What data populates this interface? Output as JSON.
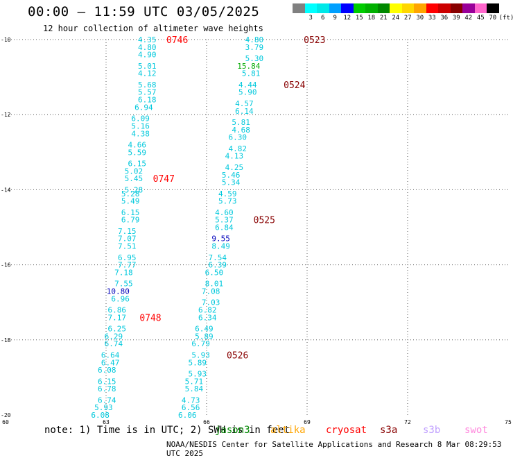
{
  "header": {
    "title": "00:00 – 11:59 UTC 03/05/2025",
    "subtitle": "12 hour collection of altimeter wave heights"
  },
  "legend": {
    "unit": "(ft)",
    "items": [
      {
        "label": "",
        "color": "#808080"
      },
      {
        "label": "3",
        "color": "#00ffff"
      },
      {
        "label": "6",
        "color": "#00e8e8"
      },
      {
        "label": "9",
        "color": "#00a0ff"
      },
      {
        "label": "12",
        "color": "#0000ff"
      },
      {
        "label": "15",
        "color": "#00cc00"
      },
      {
        "label": "18",
        "color": "#00b000"
      },
      {
        "label": "21",
        "color": "#008800"
      },
      {
        "label": "24",
        "color": "#ffff00"
      },
      {
        "label": "27",
        "color": "#ffd700"
      },
      {
        "label": "30",
        "color": "#ffa500"
      },
      {
        "label": "33",
        "color": "#ff0000"
      },
      {
        "label": "36",
        "color": "#cc0000"
      },
      {
        "label": "39",
        "color": "#880000"
      },
      {
        "label": "42",
        "color": "#990099"
      },
      {
        "label": "45",
        "color": "#ff66cc"
      },
      {
        "label": "70",
        "color": "#000000"
      }
    ]
  },
  "axes": {
    "lat_ticks": [
      "-10",
      "-12",
      "-14",
      "-16",
      "-18",
      "-20"
    ],
    "lon_ticks": [
      "60",
      "63",
      "66",
      "69",
      "72",
      "75"
    ]
  },
  "colors": {
    "cyan": "#00c8dc",
    "blue": "#0000bb",
    "green": "#00aa00",
    "red_time": "#ff0000",
    "dark_red_time": "#880000"
  },
  "tracks": [
    {
      "name": "track-west",
      "points": [
        {
          "lon": 64.5,
          "lat": -10.0,
          "v": "4.35"
        },
        {
          "lon": 64.5,
          "lat": -10.2,
          "v": "4.80"
        },
        {
          "lon": 64.5,
          "lat": -10.4,
          "v": "4.90"
        },
        {
          "lon": 64.5,
          "lat": -10.7,
          "v": "5.01"
        },
        {
          "lon": 64.5,
          "lat": -10.9,
          "v": "4.12"
        },
        {
          "lon": 64.5,
          "lat": -11.2,
          "v": "5.68"
        },
        {
          "lon": 64.5,
          "lat": -11.4,
          "v": "5.57"
        },
        {
          "lon": 64.5,
          "lat": -11.6,
          "v": "6.18"
        },
        {
          "lon": 64.4,
          "lat": -11.8,
          "v": "6.94"
        },
        {
          "lon": 64.3,
          "lat": -12.1,
          "v": "6.09"
        },
        {
          "lon": 64.3,
          "lat": -12.3,
          "v": "5.16"
        },
        {
          "lon": 64.3,
          "lat": -12.5,
          "v": "4.38"
        },
        {
          "lon": 64.2,
          "lat": -12.8,
          "v": "4.66"
        },
        {
          "lon": 64.2,
          "lat": -13.0,
          "v": "5.59"
        },
        {
          "lon": 64.2,
          "lat": -13.3,
          "v": "6.15"
        },
        {
          "lon": 64.1,
          "lat": -13.5,
          "v": "5.02"
        },
        {
          "lon": 64.1,
          "lat": -13.7,
          "v": "5.45"
        },
        {
          "lon": 64.1,
          "lat": -14.0,
          "v": "5.28"
        },
        {
          "lon": 64.0,
          "lat": -14.1,
          "v": "5.28"
        },
        {
          "lon": 64.0,
          "lat": -14.3,
          "v": "5.49"
        },
        {
          "lon": 64.0,
          "lat": -14.6,
          "v": "6.15"
        },
        {
          "lon": 64.0,
          "lat": -14.8,
          "v": "6.79"
        },
        {
          "lon": 63.9,
          "lat": -15.1,
          "v": "7.15"
        },
        {
          "lon": 63.9,
          "lat": -15.3,
          "v": "7.07"
        },
        {
          "lon": 63.9,
          "lat": -15.5,
          "v": "7.51"
        },
        {
          "lon": 63.9,
          "lat": -15.8,
          "v": "6.95"
        },
        {
          "lon": 63.9,
          "lat": -16.0,
          "v": "7.77"
        },
        {
          "lon": 63.8,
          "lat": -16.2,
          "v": "7.18"
        },
        {
          "lon": 63.8,
          "lat": -16.5,
          "v": "7.55"
        },
        {
          "lon": 63.7,
          "lat": -16.7,
          "v": "10.80",
          "blue": true
        },
        {
          "lon": 63.7,
          "lat": -16.9,
          "v": "6.96"
        },
        {
          "lon": 63.6,
          "lat": -17.2,
          "v": "6.86"
        },
        {
          "lon": 63.6,
          "lat": -17.4,
          "v": "7.17"
        },
        {
          "lon": 63.6,
          "lat": -17.7,
          "v": "6.25"
        },
        {
          "lon": 63.5,
          "lat": -17.9,
          "v": "6.29"
        },
        {
          "lon": 63.5,
          "lat": -18.1,
          "v": "6.74"
        },
        {
          "lon": 63.4,
          "lat": -18.4,
          "v": "6.64"
        },
        {
          "lon": 63.4,
          "lat": -18.6,
          "v": "6.47"
        },
        {
          "lon": 63.3,
          "lat": -18.8,
          "v": "6.08"
        },
        {
          "lon": 63.3,
          "lat": -19.1,
          "v": "6.15"
        },
        {
          "lon": 63.3,
          "lat": -19.3,
          "v": "6.78"
        },
        {
          "lon": 63.3,
          "lat": -19.6,
          "v": "6.74"
        },
        {
          "lon": 63.2,
          "lat": -19.8,
          "v": "5.93"
        },
        {
          "lon": 63.1,
          "lat": -20.0,
          "v": "6.08"
        }
      ],
      "times": [
        {
          "lon": 64.8,
          "lat": -10.0,
          "t": "0746",
          "dark": false
        },
        {
          "lon": 64.4,
          "lat": -13.7,
          "t": "0747",
          "dark": false
        },
        {
          "lon": 64.0,
          "lat": -17.4,
          "t": "0748",
          "dark": false
        }
      ]
    },
    {
      "name": "track-east",
      "points": [
        {
          "lon": 67.7,
          "lat": -10.0,
          "v": "4.80"
        },
        {
          "lon": 67.7,
          "lat": -10.2,
          "v": "3.79"
        },
        {
          "lon": 67.7,
          "lat": -10.5,
          "v": "5.30"
        },
        {
          "lon": 67.6,
          "lat": -10.7,
          "v": "15.84",
          "green": true
        },
        {
          "lon": 67.6,
          "lat": -10.9,
          "v": "5.81"
        },
        {
          "lon": 67.5,
          "lat": -11.2,
          "v": "4.44"
        },
        {
          "lon": 67.5,
          "lat": -11.4,
          "v": "5.90"
        },
        {
          "lon": 67.4,
          "lat": -11.7,
          "v": "4.57"
        },
        {
          "lon": 67.4,
          "lat": -11.9,
          "v": "6.14"
        },
        {
          "lon": 67.3,
          "lat": -12.2,
          "v": "5.81"
        },
        {
          "lon": 67.3,
          "lat": -12.4,
          "v": "4.68"
        },
        {
          "lon": 67.2,
          "lat": -12.6,
          "v": "6.30"
        },
        {
          "lon": 67.2,
          "lat": -12.9,
          "v": "4.82"
        },
        {
          "lon": 67.1,
          "lat": -13.1,
          "v": "4.13"
        },
        {
          "lon": 67.1,
          "lat": -13.4,
          "v": "4.25"
        },
        {
          "lon": 67.0,
          "lat": -13.6,
          "v": "5.46"
        },
        {
          "lon": 67.0,
          "lat": -13.8,
          "v": "5.34"
        },
        {
          "lon": 66.9,
          "lat": -14.1,
          "v": "4.59"
        },
        {
          "lon": 66.9,
          "lat": -14.3,
          "v": "5.73"
        },
        {
          "lon": 66.8,
          "lat": -14.6,
          "v": "4.60"
        },
        {
          "lon": 66.8,
          "lat": -14.8,
          "v": "5.37"
        },
        {
          "lon": 66.8,
          "lat": -15.0,
          "v": "6.84"
        },
        {
          "lon": 66.7,
          "lat": -15.3,
          "v": "9.55",
          "blue": true
        },
        {
          "lon": 66.7,
          "lat": -15.5,
          "v": "8.49"
        },
        {
          "lon": 66.6,
          "lat": -15.8,
          "v": "7.54"
        },
        {
          "lon": 66.6,
          "lat": -16.0,
          "v": "6.39"
        },
        {
          "lon": 66.5,
          "lat": -16.2,
          "v": "6.50"
        },
        {
          "lon": 66.5,
          "lat": -16.5,
          "v": "8.01"
        },
        {
          "lon": 66.4,
          "lat": -16.7,
          "v": "7.08"
        },
        {
          "lon": 66.4,
          "lat": -17.0,
          "v": "7.03"
        },
        {
          "lon": 66.3,
          "lat": -17.2,
          "v": "6.82"
        },
        {
          "lon": 66.3,
          "lat": -17.4,
          "v": "6.34"
        },
        {
          "lon": 66.2,
          "lat": -17.7,
          "v": "6.49"
        },
        {
          "lon": 66.2,
          "lat": -17.9,
          "v": "5.89"
        },
        {
          "lon": 66.1,
          "lat": -18.1,
          "v": "6.79"
        },
        {
          "lon": 66.1,
          "lat": -18.4,
          "v": "5.93"
        },
        {
          "lon": 66.0,
          "lat": -18.6,
          "v": "5.89"
        },
        {
          "lon": 66.0,
          "lat": -18.9,
          "v": "5.93"
        },
        {
          "lon": 65.9,
          "lat": -19.1,
          "v": "5.71"
        },
        {
          "lon": 65.9,
          "lat": -19.3,
          "v": "5.84"
        },
        {
          "lon": 65.8,
          "lat": -19.6,
          "v": "4.73"
        },
        {
          "lon": 65.8,
          "lat": -19.8,
          "v": "6.56"
        },
        {
          "lon": 65.7,
          "lat": -20.0,
          "v": "6.06"
        }
      ],
      "times": [
        {
          "lon": 68.9,
          "lat": -10.0,
          "t": "0523",
          "dark": true
        },
        {
          "lon": 68.3,
          "lat": -11.2,
          "t": "0524",
          "dark": true
        },
        {
          "lon": 67.4,
          "lat": -14.8,
          "t": "0525",
          "dark": true
        },
        {
          "lon": 66.6,
          "lat": -18.4,
          "t": "0526",
          "dark": true
        }
      ]
    }
  ],
  "footer": {
    "note": "note: 1) Time is in UTC; 2) SWH is in feet",
    "satellites": [
      {
        "label": "jason3",
        "color": "#008800"
      },
      {
        "label": "altika",
        "color": "#ffa500"
      },
      {
        "label": "cryosat",
        "color": "#ff0000"
      },
      {
        "label": "s3a",
        "color": "#880000"
      },
      {
        "label": "s3b",
        "color": "#c0a0ff"
      },
      {
        "label": "swot",
        "color": "#ff88dd"
      }
    ],
    "credit": "NOAA/NESDIS Center for Satellite Applications and Research    8 Mar 08:29:53 UTC 2025"
  }
}
